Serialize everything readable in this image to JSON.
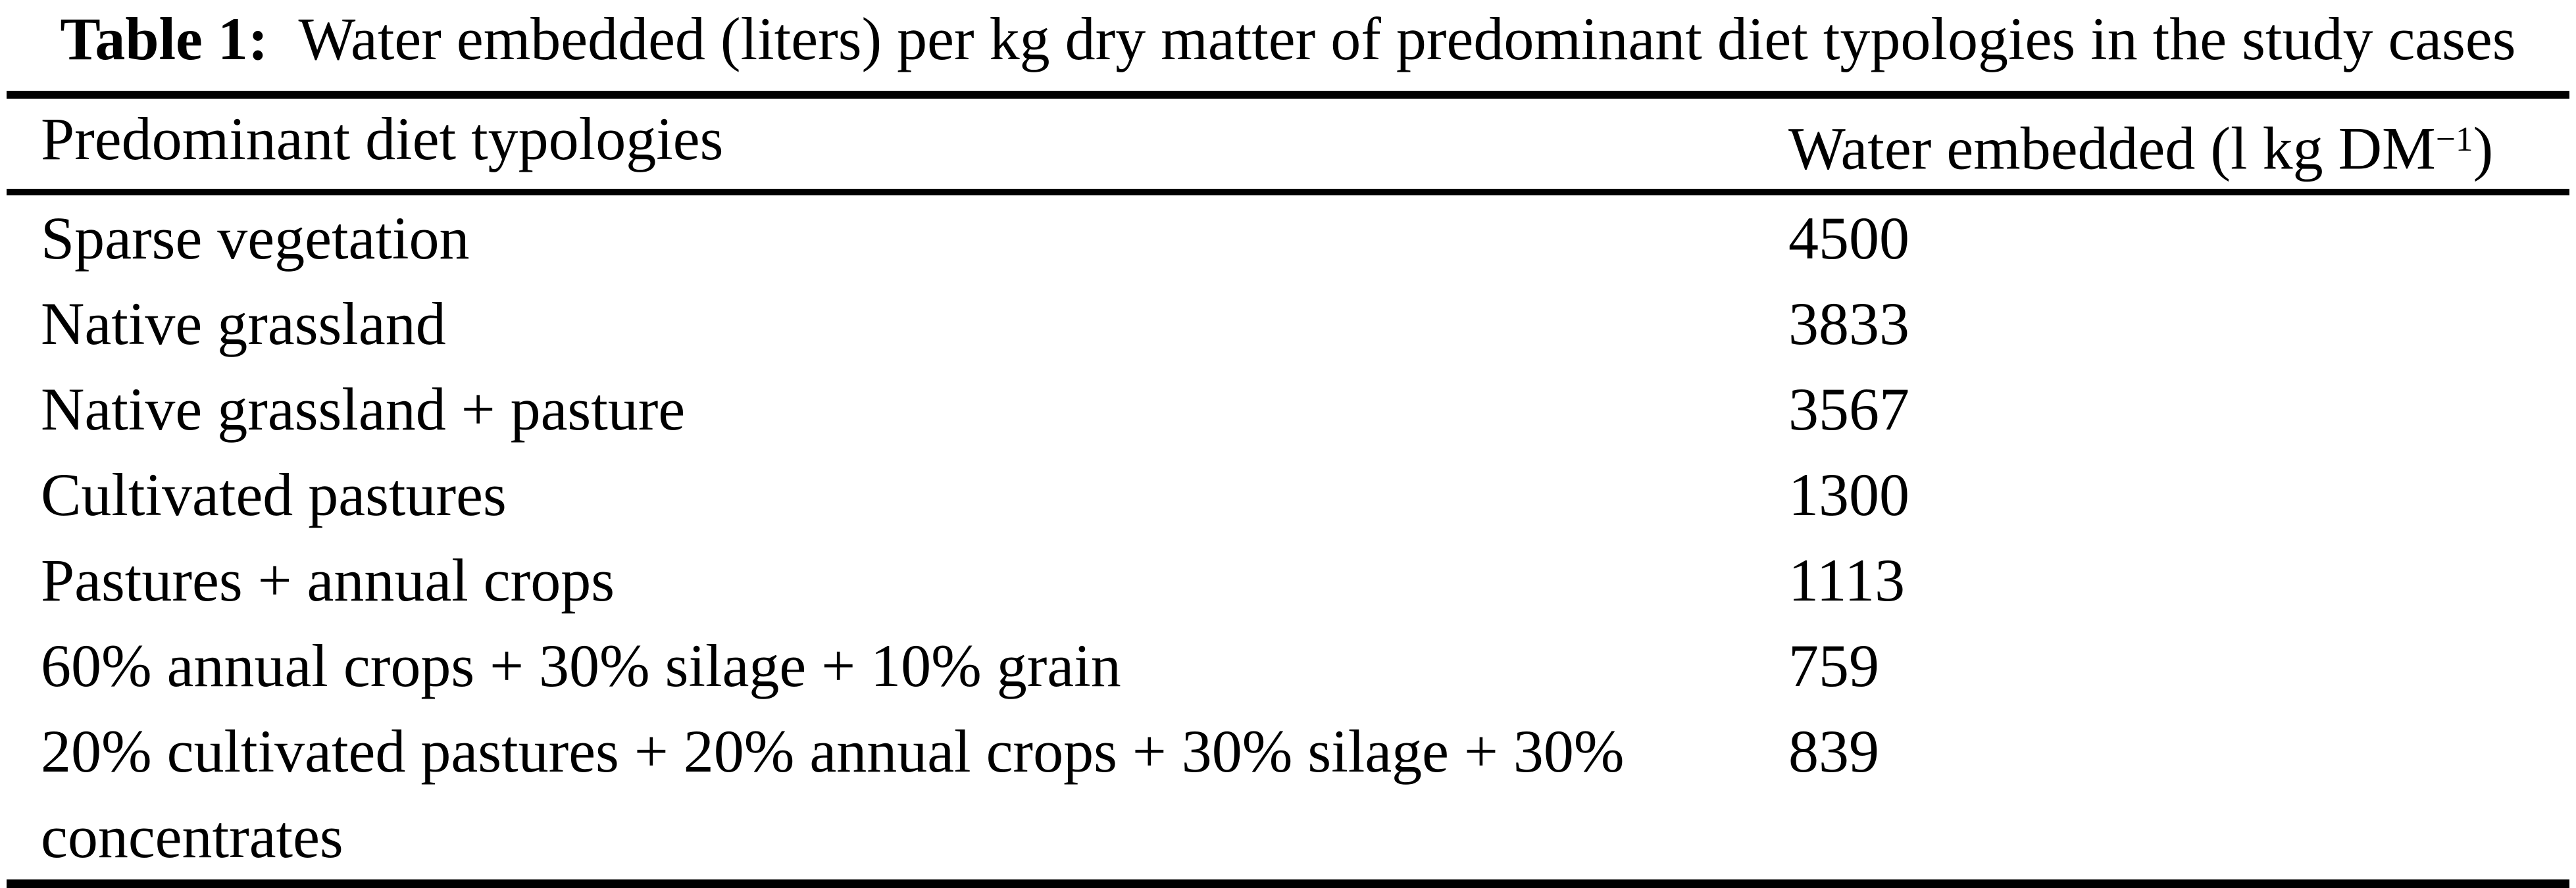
{
  "page": {
    "background_color": "#ffffff",
    "text_color": "#000000"
  },
  "caption": {
    "label": "Table 1:",
    "text": "Water embedded (liters) per kg dry matter of predominant diet typologies in the study cases"
  },
  "table": {
    "header": {
      "col1": "Predominant diet typologies",
      "col2_prefix": "Water embedded (l kg DM",
      "col2_superscript": "−1",
      "col2_suffix": ")"
    },
    "rows": [
      {
        "diet": "Sparse vegetation",
        "value": "4500"
      },
      {
        "diet": "Native grassland",
        "value": "3833"
      },
      {
        "diet": "Native grassland + pasture",
        "value": "3567"
      },
      {
        "diet": "Cultivated pastures",
        "value": "1300"
      },
      {
        "diet": "Pastures + annual crops",
        "value": "1113"
      },
      {
        "diet": "60% annual crops + 30% silage + 10% grain",
        "value": "759"
      },
      {
        "diet": "20% cultivated pastures + 20% annual crops + 30% silage + 30% concentrates",
        "value": "839"
      }
    ]
  }
}
